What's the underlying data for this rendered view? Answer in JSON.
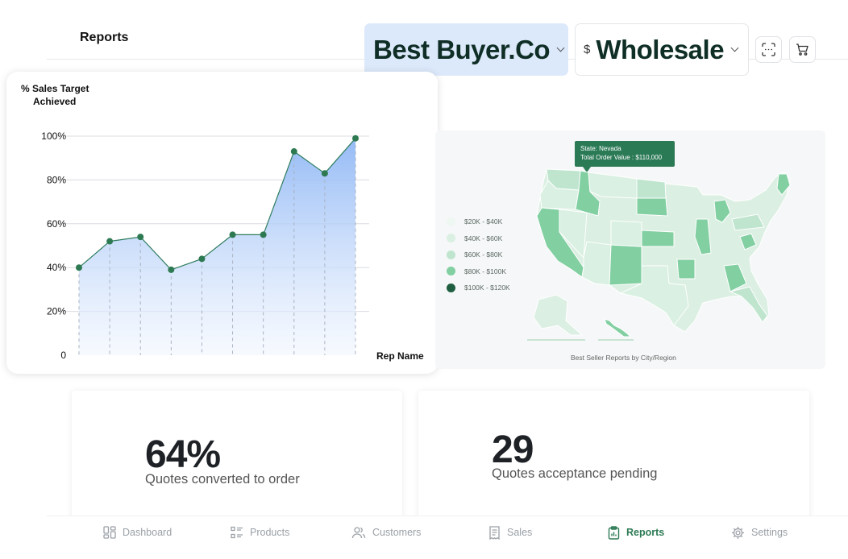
{
  "header": {
    "title": "Reports",
    "buyer_select": {
      "value": "Best Buyer.Co"
    },
    "price_select": {
      "currency_symbol": "$",
      "value": "Wholesale"
    }
  },
  "chart_data": {
    "type": "area",
    "ylabel": "% Sales Target Achieved",
    "ylabel_lines": [
      "% Sales Target",
      "Achieved"
    ],
    "xlabel": "Rep Name",
    "y_ticks": [
      "100%",
      "80%",
      "60%",
      "40%",
      "20%",
      "0"
    ],
    "ylim": [
      0,
      100
    ],
    "values": [
      40,
      52,
      54,
      39,
      44,
      55,
      55,
      93,
      83,
      99
    ],
    "grid": true,
    "colors": {
      "line": "#2f7d5e",
      "point": "#2d7a52",
      "fill_top": "#8fb7f5",
      "fill_bottom": "#f1f6fe"
    }
  },
  "map": {
    "tooltip": {
      "state": "State: Nevada",
      "order_value": "Total Order Value : $110,000"
    },
    "legend": [
      {
        "label": "$20K - $40K",
        "color": "#eef7f1"
      },
      {
        "label": "$40K - $60K",
        "color": "#d9f0e2"
      },
      {
        "label": "$60K - $80K",
        "color": "#bfe5cf"
      },
      {
        "label": "$80K - $100K",
        "color": "#82cfa2"
      },
      {
        "label": "$100K - $120K",
        "color": "#1f5e40"
      }
    ],
    "caption": "Best Seller Reports by City/Region"
  },
  "stats": [
    {
      "value": "64%",
      "label": "Quotes converted to order"
    },
    {
      "value": "29",
      "label": "Quotes acceptance pending"
    }
  ],
  "nav": {
    "items": [
      {
        "label": "Dashboard",
        "icon": "dashboard-icon"
      },
      {
        "label": "Products",
        "icon": "list-icon"
      },
      {
        "label": "Customers",
        "icon": "users-icon"
      },
      {
        "label": "Sales",
        "icon": "receipt-icon"
      },
      {
        "label": "Reports",
        "icon": "clipboard-icon",
        "active": true
      },
      {
        "label": "Settings",
        "icon": "gear-icon"
      }
    ]
  }
}
